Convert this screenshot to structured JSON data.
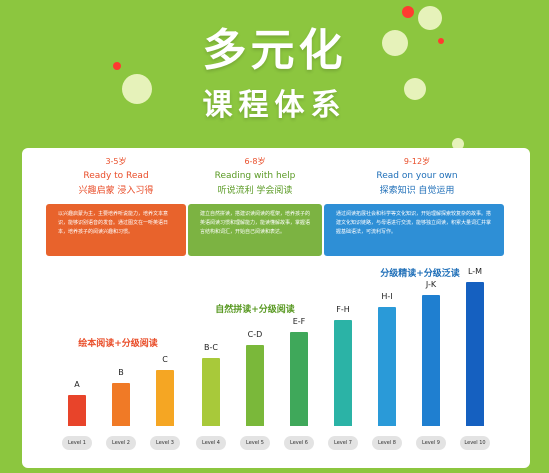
{
  "title_line1": "多元化",
  "title_line2": "课程体系",
  "stages": [
    {
      "age": "3-5岁",
      "en": "Ready to Read",
      "cn": "兴趣启蒙  浸入习得",
      "desc": "以兴趣启蒙为主，主要培养听说能力，培养文本意识，能够识别语音的发音。通过图文在一听英语日本，培养孩子的阅读兴趣和习惯。",
      "color": "#e8632c",
      "text_color": "#e94e2a"
    },
    {
      "age": "6-8岁",
      "en": "Reading with help",
      "cn": "听说流利  学会阅读",
      "desc": "建立自然拼读，搭建识读阅读的框架，培养孩子的英语阅读习惯和理解能力，能读懂解故事，掌握语言结构和词汇，开始自己阅读和表达。",
      "color": "#7cb342",
      "text_color": "#5a9a24"
    },
    {
      "age": "9-12岁",
      "en": "Read on your own",
      "cn": "探索知识  自觉运用",
      "desc": "通过阅读拓展社会和科学等文化知识，开始理解探索较复杂的故事。搭建文化知识链路，与母语进行交流，能够独立阅读，积累大量词汇并掌握基础语法，可流利写作。",
      "color": "#2e8fd6",
      "text_color": "#1f6fb8"
    }
  ],
  "group_labels": [
    "绘本阅读+分级阅读",
    "自然拼读+分级阅读",
    "分级精读+分级泛读"
  ],
  "bars": [
    {
      "label": "A",
      "level": "Level 1",
      "value": 1,
      "color": "#e8442a"
    },
    {
      "label": "B",
      "level": "Level 2",
      "value": 2,
      "color": "#f07a26"
    },
    {
      "label": "C",
      "level": "Level 3",
      "value": 3,
      "color": "#f5a623"
    },
    {
      "label": "B-C",
      "level": "Level 4",
      "value": 4,
      "color": "#a8c93a"
    },
    {
      "label": "C-D",
      "level": "Level 5",
      "value": 5,
      "color": "#7ab83a"
    },
    {
      "label": "E-F",
      "level": "Level 6",
      "value": 6,
      "color": "#3fa85a"
    },
    {
      "label": "F-H",
      "level": "Level 7",
      "value": 7,
      "color": "#2bb3a6"
    },
    {
      "label": "H-I",
      "level": "Level 8",
      "value": 8,
      "color": "#2a9ad8"
    },
    {
      "label": "J-K",
      "level": "Level 9",
      "value": 9,
      "color": "#1f7fd0"
    },
    {
      "label": "L-M",
      "level": "Level 10",
      "value": 10,
      "color": "#1560c0"
    }
  ]
}
